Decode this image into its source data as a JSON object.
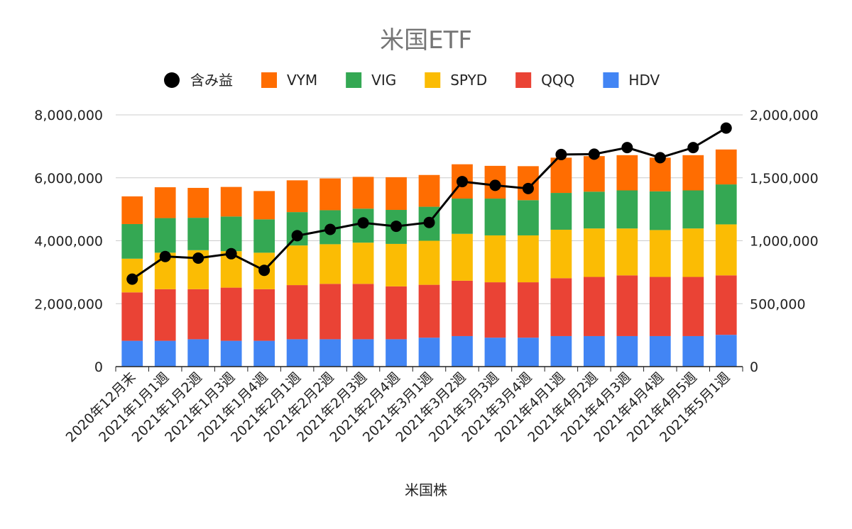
{
  "chart_data": {
    "type": "bar",
    "title": "米国ETF",
    "xlabel": "米国株",
    "ylabel": "",
    "y2label": "",
    "categories": [
      "2020年12月末",
      "2021年1月1週",
      "2021年1月2週",
      "2021年1月3週",
      "2021年1月4週",
      "2021年2月1週",
      "2021年2月2週",
      "2021年2月3週",
      "2021年2月4週",
      "2021年3月1週",
      "2021年3月2週",
      "2021年3月3週",
      "2021年3月4週",
      "2021年4月1週",
      "2021年4月2週",
      "2021年4月3週",
      "2021年4月4週",
      "2021年4月5週",
      "2021年5月1週"
    ],
    "stacked": true,
    "ylim": [
      0,
      8000000
    ],
    "y2lim": [
      0,
      2000000
    ],
    "yticks": [
      "0",
      "2,000,000",
      "4,000,000",
      "6,000,000",
      "8,000,000"
    ],
    "y2ticks": [
      "0",
      "500,000",
      "1,000,000",
      "1,500,000",
      "2,000,000"
    ],
    "grid": true,
    "legend_position": "top",
    "series": [
      {
        "name": "HDV",
        "color": "#4285f4",
        "axis": "left",
        "values": [
          820000,
          820000,
          870000,
          820000,
          820000,
          870000,
          870000,
          870000,
          870000,
          920000,
          970000,
          920000,
          920000,
          970000,
          970000,
          970000,
          970000,
          970000,
          1010000
        ]
      },
      {
        "name": "QQQ",
        "color": "#ea4335",
        "axis": "left",
        "values": [
          1540000,
          1640000,
          1590000,
          1690000,
          1640000,
          1720000,
          1760000,
          1760000,
          1680000,
          1680000,
          1760000,
          1760000,
          1760000,
          1840000,
          1880000,
          1930000,
          1880000,
          1880000,
          1890000
        ]
      },
      {
        "name": "SPYD",
        "color": "#fbbc04",
        "axis": "left",
        "values": [
          1070000,
          1160000,
          1240000,
          1160000,
          1160000,
          1260000,
          1260000,
          1310000,
          1350000,
          1400000,
          1490000,
          1490000,
          1490000,
          1540000,
          1540000,
          1490000,
          1490000,
          1540000,
          1620000
        ]
      },
      {
        "name": "VIG",
        "color": "#34a853",
        "axis": "left",
        "values": [
          1100000,
          1100000,
          1030000,
          1100000,
          1060000,
          1060000,
          1080000,
          1080000,
          1080000,
          1080000,
          1120000,
          1170000,
          1120000,
          1170000,
          1170000,
          1210000,
          1230000,
          1210000,
          1270000
        ]
      },
      {
        "name": "VYM",
        "color": "#ff6d01",
        "axis": "left",
        "values": [
          880000,
          980000,
          950000,
          940000,
          900000,
          1010000,
          1010000,
          1010000,
          1040000,
          1010000,
          1090000,
          1040000,
          1080000,
          1120000,
          1130000,
          1120000,
          1070000,
          1120000,
          1110000
        ]
      },
      {
        "name": "含み益",
        "color": "#000000",
        "axis": "right",
        "type": "line",
        "values": [
          695000,
          875000,
          862000,
          897000,
          765000,
          1040000,
          1090000,
          1142000,
          1115000,
          1145000,
          1470000,
          1440000,
          1415000,
          1685000,
          1688000,
          1740000,
          1660000,
          1740000,
          1895000
        ]
      }
    ],
    "legend_order": [
      "含み益",
      "VYM",
      "VIG",
      "SPYD",
      "QQQ",
      "HDV"
    ]
  }
}
